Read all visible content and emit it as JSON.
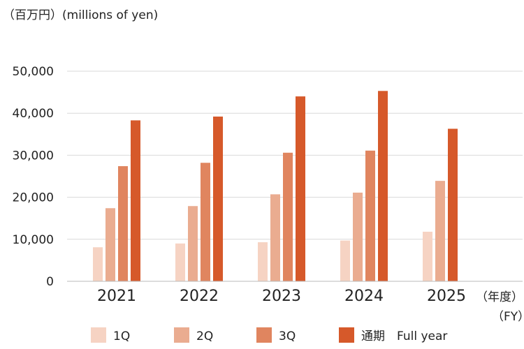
{
  "chart_data": {
    "type": "bar",
    "unit_label": "（百万円）(millions of yen)",
    "xunit_label_1": "（年度）",
    "xunit_label_2": "（FY）",
    "categories": [
      "2021",
      "2022",
      "2023",
      "2024",
      "2025"
    ],
    "series": [
      {
        "name": "1Q",
        "color": "#f6d3c3",
        "values": [
          8100,
          9000,
          9300,
          9700,
          11800
        ]
      },
      {
        "name": "2Q",
        "color": "#eaac90",
        "values": [
          17400,
          17900,
          20700,
          21100,
          23900
        ]
      },
      {
        "name": "3Q",
        "color": "#e0855f",
        "values": [
          27400,
          28200,
          30600,
          31100,
          null
        ]
      },
      {
        "name": "通期　Full year",
        "color": "#d6592a",
        "values": [
          38300,
          39200,
          44000,
          45300,
          36300
        ]
      }
    ],
    "yticks": [
      "0",
      "10,000",
      "20,000",
      "30,000",
      "40,000",
      "50,000"
    ],
    "ylim": [
      0,
      50000
    ],
    "grid": true,
    "legend_position": "bottom"
  }
}
